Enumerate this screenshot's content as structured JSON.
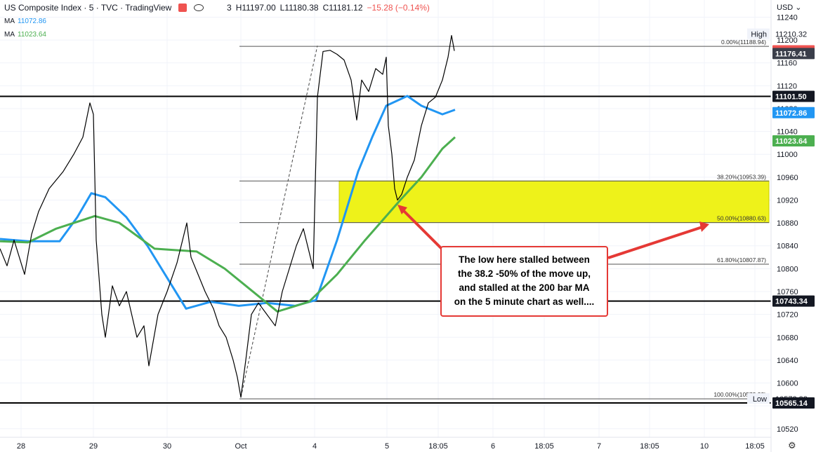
{
  "header": {
    "symbol": "US Composite Index · 5 · TVC · TradingView",
    "ohlc_prefix": "3",
    "high": "H11197.00",
    "low": "L11180.38",
    "close": "C11181.12",
    "change": "−15.28 (−0.14%)"
  },
  "indicators": [
    {
      "label": "MA",
      "value": "11072.86",
      "color": "#2196f3"
    },
    {
      "label": "MA",
      "value": "11023.64",
      "color": "#4caf50"
    }
  ],
  "currency": "USD",
  "callout": {
    "lines": [
      "The low here stalled between",
      "the 38.2 -50% of the move up,",
      "and stalled at the 200 bar MA",
      "on the 5 minute chart as well...."
    ]
  },
  "chart_data": {
    "type": "line",
    "y_axis": {
      "min": 10505,
      "max": 11270,
      "ticks": [
        11240,
        11200,
        11160,
        11120,
        11080,
        11040,
        11000,
        10960,
        10920,
        10880,
        10840,
        10800,
        10760,
        10720,
        10680,
        10640,
        10600,
        10560,
        10520
      ]
    },
    "x_ticks": [
      "28",
      "29",
      "30",
      "Oct",
      "4",
      "5",
      "18:05",
      "6",
      "18:05",
      "7",
      "18:05",
      "10",
      "18:05"
    ],
    "price_labels": [
      {
        "value": 11210.32,
        "text": "11210.32",
        "style": "plain"
      },
      {
        "value": 11181.12,
        "text": "11181.12",
        "style": "last",
        "color": "#ef5350"
      },
      {
        "value": 11176.41,
        "text": "11176.41",
        "style": "dark",
        "color": "#3a3e4a"
      },
      {
        "value": 11101.5,
        "text": "11101.50",
        "style": "dark",
        "color": "#131722"
      },
      {
        "value": 11072.86,
        "text": "11072.86",
        "style": "ma",
        "color": "#2196f3"
      },
      {
        "value": 11023.64,
        "text": "11023.64",
        "style": "ma",
        "color": "#4caf50"
      },
      {
        "value": 10743.34,
        "text": "10743.34",
        "style": "dark",
        "color": "#131722"
      },
      {
        "value": 10572.33,
        "text": "10572.33",
        "style": "plain"
      },
      {
        "value": 10565.14,
        "text": "10565.14",
        "style": "dark",
        "color": "#131722"
      }
    ],
    "edge_labels": [
      {
        "value": 11210.32,
        "text": "High"
      },
      {
        "value": 10572.33,
        "text": "Low"
      }
    ],
    "horizontal_levels": [
      {
        "value": 11101.5
      },
      {
        "value": 10743.34
      },
      {
        "value": 10565.14
      }
    ],
    "fibonacci": [
      {
        "value": 11188.94,
        "text": "0.00%(11188.94)"
      },
      {
        "value": 10953.39,
        "text": "38.20%(10953.39)"
      },
      {
        "value": 10880.63,
        "text": "50.00%(10880.63)"
      },
      {
        "value": 10807.87,
        "text": "61.80%(10807.87)"
      },
      {
        "value": 10572.33,
        "text": "100.00%(10572.33)"
      }
    ],
    "highlight_zone": {
      "from": 10953.39,
      "to": 10880.63,
      "color": "#eef21a"
    },
    "series": [
      {
        "color": "#2196f3",
        "points": [
          [
            0,
            10852
          ],
          [
            40,
            10848
          ],
          [
            85,
            10848
          ],
          [
            110,
            10890
          ],
          [
            130,
            10932
          ],
          [
            150,
            10925
          ],
          [
            180,
            10890
          ],
          [
            210,
            10840
          ],
          [
            240,
            10780
          ],
          [
            265,
            10730
          ],
          [
            300,
            10742
          ],
          [
            340,
            10735
          ],
          [
            380,
            10740
          ],
          [
            420,
            10735
          ],
          [
            450,
            10745
          ],
          [
            480,
            10850
          ],
          [
            510,
            10970
          ],
          [
            530,
            11030
          ],
          [
            550,
            11085
          ],
          [
            580,
            11102
          ],
          [
            600,
            11085
          ],
          [
            630,
            11070
          ],
          [
            648,
            11078
          ]
        ]
      },
      {
        "color": "#4caf50",
        "points": [
          [
            0,
            10848
          ],
          [
            40,
            10846
          ],
          [
            80,
            10870
          ],
          [
            135,
            10892
          ],
          [
            170,
            10880
          ],
          [
            220,
            10835
          ],
          [
            280,
            10830
          ],
          [
            320,
            10800
          ],
          [
            350,
            10770
          ],
          [
            395,
            10725
          ],
          [
            440,
            10742
          ],
          [
            480,
            10790
          ],
          [
            520,
            10850
          ],
          [
            570,
            10920
          ],
          [
            600,
            10960
          ],
          [
            630,
            11010
          ],
          [
            648,
            11030
          ]
        ]
      },
      {
        "color": "#000",
        "points": [
          [
            0,
            10835
          ],
          [
            10,
            10805
          ],
          [
            20,
            10850
          ],
          [
            35,
            10790
          ],
          [
            45,
            10860
          ],
          [
            55,
            10900
          ],
          [
            70,
            10940
          ],
          [
            90,
            10970
          ],
          [
            105,
            11000
          ],
          [
            118,
            11030
          ],
          [
            128,
            11090
          ],
          [
            133,
            11070
          ],
          [
            137,
            10850
          ],
          [
            145,
            10720
          ],
          [
            150,
            10680
          ],
          [
            160,
            10770
          ],
          [
            170,
            10735
          ],
          [
            180,
            10760
          ],
          [
            195,
            10680
          ],
          [
            205,
            10700
          ],
          [
            212,
            10630
          ],
          [
            225,
            10720
          ],
          [
            238,
            10760
          ],
          [
            252,
            10810
          ],
          [
            266,
            10880
          ],
          [
            272,
            10820
          ],
          [
            282,
            10790
          ],
          [
            292,
            10760
          ],
          [
            304,
            10730
          ],
          [
            312,
            10700
          ],
          [
            322,
            10680
          ],
          [
            332,
            10640
          ],
          [
            338,
            10610
          ],
          [
            343,
            10575
          ],
          [
            350,
            10640
          ],
          [
            358,
            10720
          ],
          [
            368,
            10740
          ],
          [
            380,
            10720
          ],
          [
            392,
            10700
          ],
          [
            402,
            10760
          ],
          [
            412,
            10800
          ],
          [
            422,
            10840
          ],
          [
            432,
            10870
          ],
          [
            442,
            10820
          ],
          [
            446,
            10800
          ],
          [
            452,
            11100
          ],
          [
            460,
            11180
          ],
          [
            470,
            11182
          ],
          [
            480,
            11175
          ],
          [
            490,
            11165
          ],
          [
            500,
            11130
          ],
          [
            508,
            11060
          ],
          [
            515,
            11130
          ],
          [
            525,
            11110
          ],
          [
            535,
            11150
          ],
          [
            545,
            11140
          ],
          [
            550,
            11170
          ],
          [
            553,
            11050
          ],
          [
            558,
            11000
          ],
          [
            562,
            10940
          ],
          [
            566,
            10920
          ],
          [
            572,
            10930
          ],
          [
            580,
            10960
          ],
          [
            590,
            10990
          ],
          [
            600,
            11050
          ],
          [
            610,
            11090
          ],
          [
            620,
            11100
          ],
          [
            630,
            11130
          ],
          [
            638,
            11170
          ],
          [
            643,
            11208
          ],
          [
            647,
            11181
          ]
        ]
      }
    ],
    "diagonal": {
      "from": [
        343,
        10575
      ],
      "to": [
        452,
        11190
      ]
    }
  }
}
